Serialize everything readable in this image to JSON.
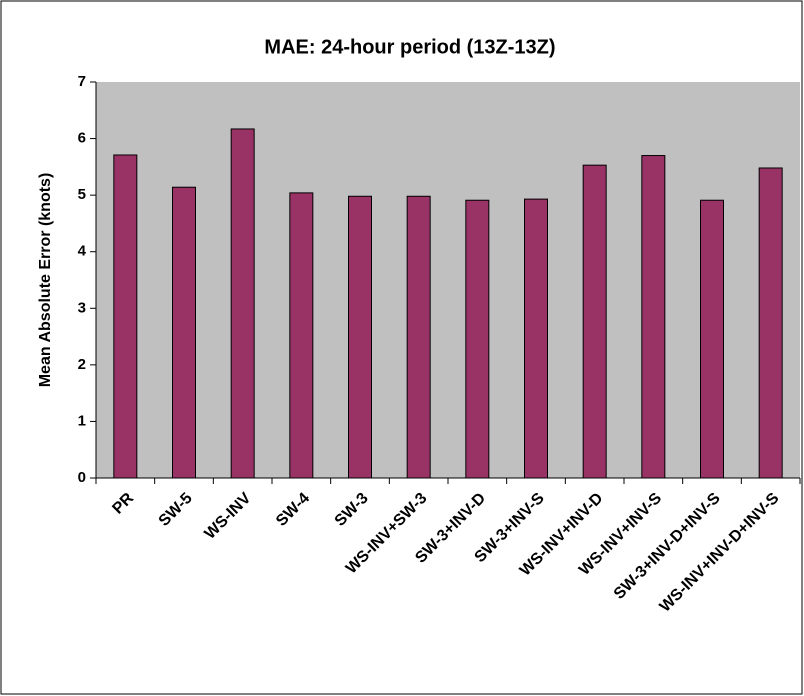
{
  "chart_data": {
    "type": "bar",
    "title": "MAE: 24-hour period (13Z-13Z)",
    "y_label": "Mean Absolute Error (knots)",
    "categories": [
      "PR",
      "SW-5",
      "WS-INV",
      "SW-4",
      "SW-3",
      "WS-INV+SW-3",
      "SW-3+INV-D",
      "SW-3+INV-S",
      "WS-INV+INV-D",
      "WS-INV+INV-S",
      "SW-3+INV-D+INV-S",
      "WS-INV+INV-D+INV-S"
    ],
    "values": [
      5.71,
      5.14,
      6.17,
      5.04,
      4.98,
      4.98,
      4.91,
      4.93,
      5.53,
      5.7,
      4.91,
      5.48
    ],
    "color": "#993366",
    "plot_background": "#c0c0c0",
    "ylim": [
      0,
      7
    ],
    "yticks": [
      0,
      1,
      2,
      3,
      4,
      5,
      6,
      7
    ]
  }
}
